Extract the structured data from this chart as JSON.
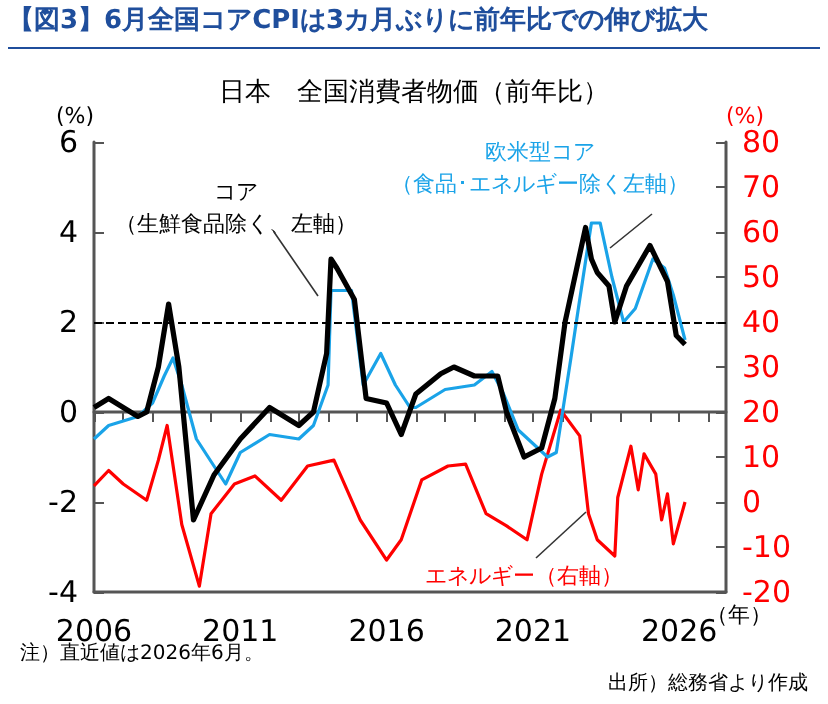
{
  "chart_data": {
    "type": "line",
    "title": "【図3】6月全国コアCPIは3カ月ぶりに前年比での伸び拡大",
    "subtitle": "日本　全国消費者物価（前年比）",
    "ylabel": "(%)",
    "y2label": "(%)",
    "xlabel": "（年）",
    "annotations": [
      "注）直近値は2026年6月。",
      "出所）総務省より作成"
    ],
    "xlim": [
      2006,
      2027.6
    ],
    "xticks": [
      2006,
      {
        "value": 2007,
        "label": null
      },
      {
        "value": 2008,
        "label": null
      },
      {
        "value": 2009,
        "label": null
      },
      {
        "value": 2010,
        "label": null
      },
      2011,
      {
        "value": 2012,
        "label": null
      },
      {
        "value": 2013,
        "label": null
      },
      {
        "value": 2014,
        "label": null
      },
      {
        "value": 2015,
        "label": null
      },
      2016,
      {
        "value": 2017,
        "label": null
      },
      {
        "value": 2018,
        "label": null
      },
      {
        "value": 2019,
        "label": null
      },
      {
        "value": 2020,
        "label": null
      },
      2021,
      {
        "value": 2022,
        "label": null
      },
      {
        "value": 2023,
        "label": null
      },
      {
        "value": 2024,
        "label": null
      },
      {
        "value": 2025,
        "label": null
      },
      2026,
      {
        "value": 2027,
        "label": null
      }
    ],
    "ylim": [
      -4,
      6
    ],
    "yticks": [
      -4,
      -2,
      0,
      2,
      4,
      6
    ],
    "y2lim": [
      -20,
      80
    ],
    "y2ticks": [
      -20,
      -10,
      0,
      10,
      20,
      30,
      40,
      50,
      60,
      70,
      80
    ],
    "ref_lines": [
      {
        "axis": "y",
        "value": 2,
        "label": null,
        "color": "#000000",
        "line_style": "dashed"
      }
    ],
    "grid": false,
    "legend": false,
    "marker": "none",
    "line_style": "solid",
    "series": [
      {
        "name": "欧米型コア（食品･エネルギー除く左軸）",
        "color": "#1aa3e8",
        "x": [
          2006.0,
          2006.5,
          2007.0,
          2007.5,
          2008.0,
          2008.4,
          2008.7,
          2009.0,
          2009.5,
          2010.1,
          2010.5,
          2011.0,
          2012.0,
          2013.0,
          2013.5,
          2014.0,
          2014.1,
          2014.8,
          2015.2,
          2015.8,
          2016.3,
          2016.8,
          2017.0,
          2018.0,
          2019.0,
          2019.6,
          2020.0,
          2020.5,
          2021.5,
          2021.8,
          2022.3,
          2022.6,
          2023.0,
          2023.3,
          2023.7,
          2024.1,
          2024.5,
          2025.1,
          2025.5,
          2025.8,
          2026.2
        ],
        "values": [
          -0.6,
          -0.3,
          -0.2,
          -0.1,
          0.2,
          0.8,
          1.2,
          0.6,
          -0.6,
          -1.2,
          -1.6,
          -0.9,
          -0.5,
          -0.6,
          -0.3,
          0.6,
          2.7,
          2.7,
          0.6,
          1.3,
          0.6,
          0.1,
          0.1,
          0.5,
          0.6,
          0.9,
          0.4,
          -0.4,
          -1.0,
          -0.9,
          1.2,
          2.5,
          4.2,
          4.2,
          3.0,
          2.0,
          2.3,
          3.4,
          3.2,
          2.6,
          1.6
        ]
      },
      {
        "name": "コア（生鮮食品除く、左軸）",
        "color": "#000000",
        "x": [
          2006.0,
          2006.5,
          2007.0,
          2007.5,
          2007.8,
          2008.2,
          2008.55,
          2008.9,
          2009.4,
          2010.1,
          2011.0,
          2012.0,
          2013.0,
          2013.5,
          2013.95,
          2014.1,
          2014.3,
          2014.9,
          2015.3,
          2016.0,
          2016.5,
          2017.0,
          2017.85,
          2018.3,
          2019.0,
          2019.8,
          2020.1,
          2020.7,
          2021.3,
          2021.75,
          2022.1,
          2022.8,
          2023.0,
          2023.2,
          2023.6,
          2023.8,
          2024.2,
          2025.0,
          2025.6,
          2025.9,
          2026.2
        ],
        "values": [
          0.1,
          0.3,
          0.1,
          -0.1,
          0.0,
          1.0,
          2.4,
          1.0,
          -2.4,
          -1.4,
          -0.6,
          0.1,
          -0.3,
          0.0,
          1.3,
          3.4,
          3.2,
          2.5,
          0.3,
          0.2,
          -0.5,
          0.4,
          0.85,
          1.0,
          0.8,
          0.8,
          0.0,
          -1.0,
          -0.8,
          0.3,
          2.0,
          4.1,
          3.4,
          3.1,
          2.8,
          2.0,
          2.8,
          3.7,
          2.9,
          1.7,
          1.5
        ]
      },
      {
        "name": "エネルギー（右軸）",
        "color": "#ff0000",
        "axis": "y2",
        "x": [
          2006.0,
          2006.5,
          2007.0,
          2007.8,
          2008.2,
          2008.5,
          2009.0,
          2009.6,
          2010.0,
          2010.8,
          2011.5,
          2012.4,
          2013.3,
          2014.2,
          2015.1,
          2016.0,
          2016.5,
          2017.2,
          2018.1,
          2018.7,
          2019.4,
          2020.1,
          2020.8,
          2021.3,
          2021.95,
          2022.6,
          2022.9,
          2023.2,
          2023.8,
          2023.9,
          2024.35,
          2024.6,
          2024.8,
          2025.2,
          2025.4,
          2025.6,
          2025.8,
          2026.2
        ],
        "values": [
          3.6,
          7,
          4,
          0.4,
          9.3,
          17,
          -5,
          -18.7,
          -2.6,
          4,
          5.8,
          0.4,
          8,
          9.3,
          -4,
          -12.9,
          -8.4,
          4.9,
          8,
          8.4,
          -2.6,
          -5.3,
          -8.4,
          6.2,
          20.4,
          14.7,
          -2.6,
          -8.4,
          -12,
          1,
          12.4,
          2.7,
          10.7,
          6.2,
          -4,
          1.8,
          -9.3,
          0
        ]
      }
    ]
  }
}
